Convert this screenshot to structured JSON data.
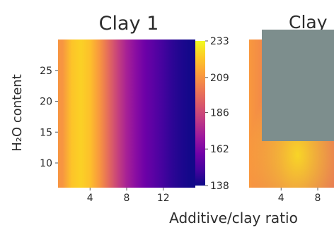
{
  "chart_data": [
    {
      "type": "heatmap",
      "title": "Clay 1",
      "xlabel": "Additive/clay ratio",
      "ylabel": "H₂O content",
      "xlim": [
        0.5,
        15.5
      ],
      "ylim": [
        6,
        30
      ],
      "x_ticks": [
        4,
        8,
        12
      ],
      "y_ticks": [
        10,
        15,
        20,
        25
      ],
      "colorbar": {
        "min": 138,
        "max": 233,
        "ticks": [
          233,
          209,
          186,
          162,
          138
        ],
        "colormap": "plasma"
      },
      "columns_x": [
        1,
        2,
        3,
        4,
        5,
        6,
        7,
        8,
        9,
        10,
        11,
        12,
        13,
        14,
        15
      ],
      "column_values": [
        209,
        221,
        224,
        220,
        210,
        197,
        184,
        173,
        165,
        158,
        153,
        148,
        144,
        141,
        139
      ]
    },
    {
      "type": "heatmap",
      "title": "Clay",
      "xlabel": "Additive/clay ratio",
      "x_ticks": [
        4,
        8
      ],
      "colormap": "plasma",
      "corner_value": 210,
      "low_value": 196,
      "high_value": 226
    }
  ],
  "colors": {
    "occluder": "#7d8e8d",
    "plasma_stops": [
      "#0d0887",
      "#46039f",
      "#7201a8",
      "#9c179e",
      "#bd3786",
      "#d8576b",
      "#ed7953",
      "#fb9f3a",
      "#fdca26",
      "#f0f921"
    ]
  }
}
